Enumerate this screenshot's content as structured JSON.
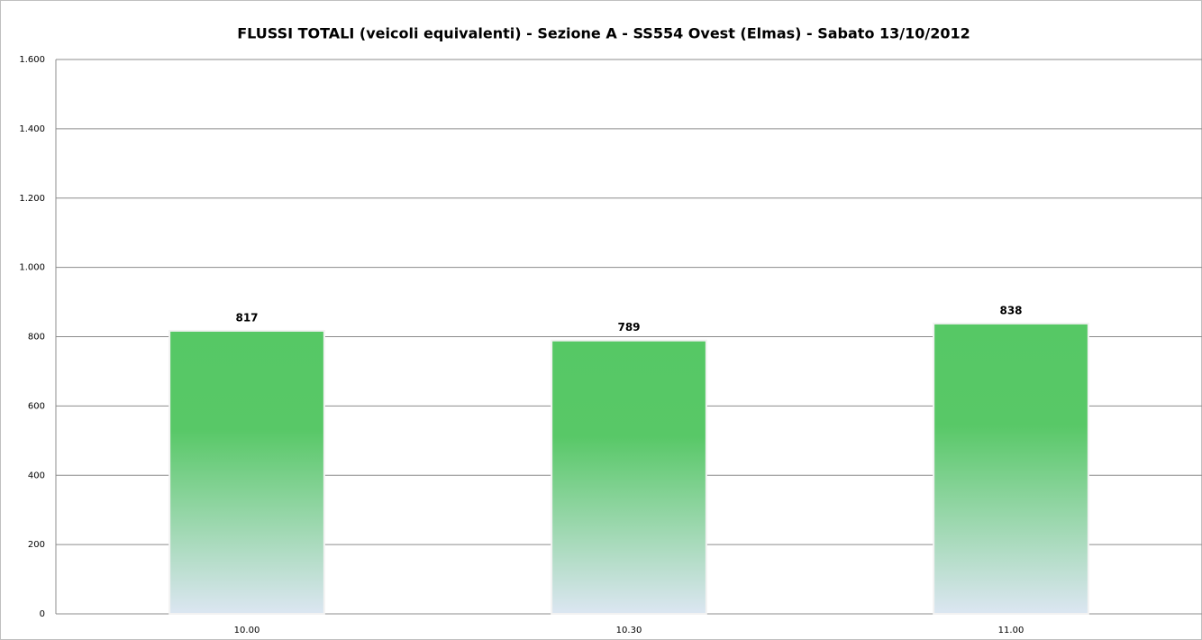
{
  "chart_data": {
    "type": "bar",
    "title": "FLUSSI TOTALI (veicoli equivalenti)  - Sezione A - SS554 Ovest (Elmas) - Sabato 13/10/2012",
    "categories": [
      "10.00",
      "10.30",
      "11.00"
    ],
    "values": [
      817,
      789,
      838
    ],
    "color": "#56c865",
    "ylim": [
      0,
      1600
    ],
    "yticks": [
      0,
      200,
      400,
      600,
      800,
      {
        "value": 1000,
        "label": "1.000"
      },
      {
        "value": 1200,
        "label": "1.200"
      },
      {
        "value": 1400,
        "label": "1.400"
      },
      {
        "value": 1600,
        "label": "1.600"
      }
    ],
    "grid": true
  }
}
